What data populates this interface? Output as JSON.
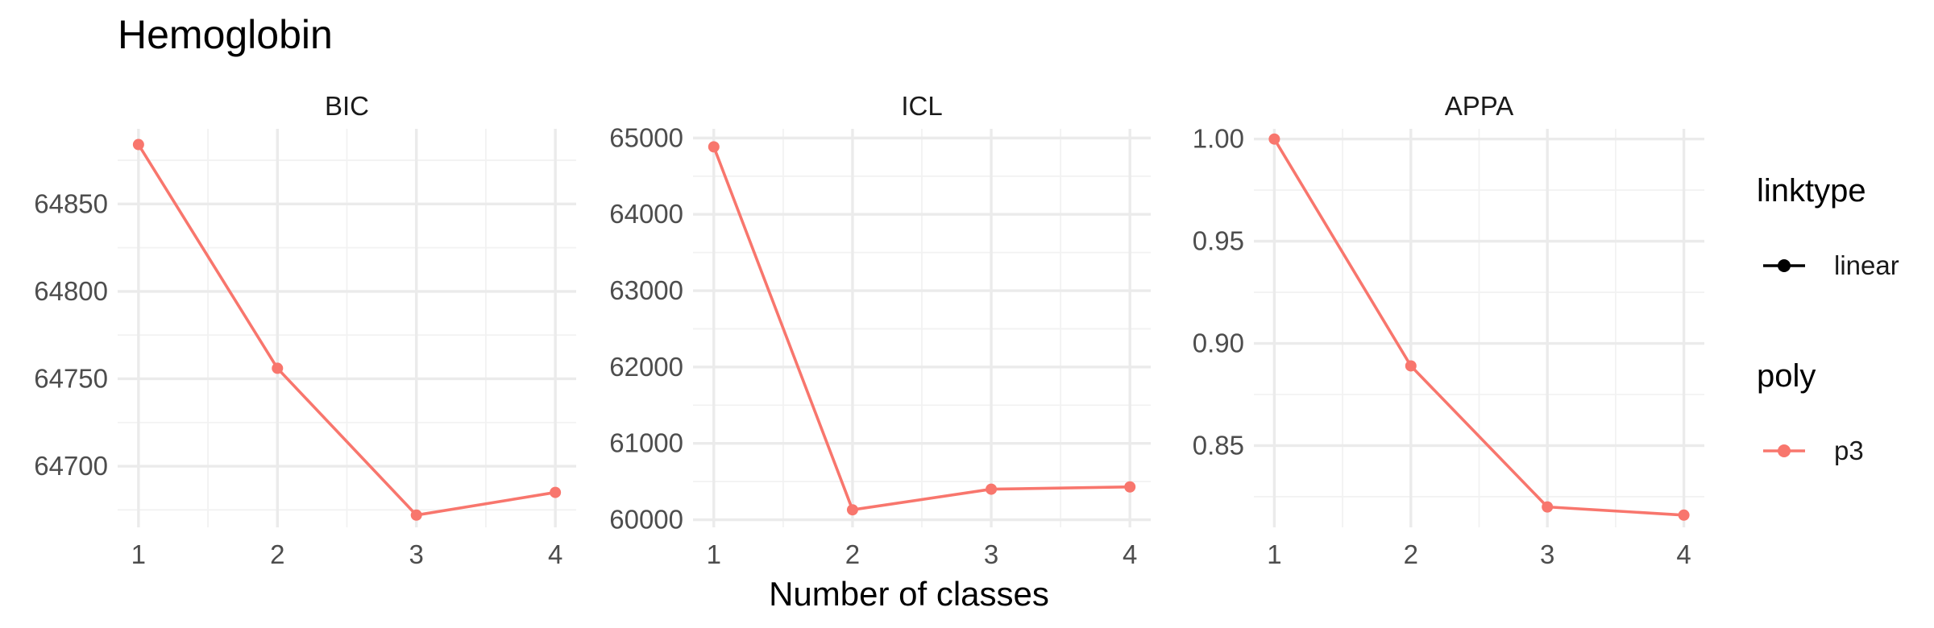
{
  "chart_data": {
    "type": "line",
    "title": "Hemoglobin",
    "xlabel": "Number of classes",
    "x": [
      1,
      2,
      3,
      4
    ],
    "line_color": "#F8766D",
    "panels": [
      {
        "name": "BIC",
        "values": [
          64884,
          64756,
          64672,
          64685
        ],
        "ylim": [
          64665,
          64893
        ],
        "yticks": [
          64700,
          64750,
          64800,
          64850
        ],
        "ytick_labels": [
          "64700",
          "64750",
          "64800",
          "64850"
        ]
      },
      {
        "name": "ICL",
        "values": [
          64884,
          60130,
          60400,
          60430
        ],
        "ylim": [
          59900,
          65120
        ],
        "yticks": [
          60000,
          61000,
          62000,
          63000,
          64000,
          65000
        ],
        "ytick_labels": [
          "60000",
          "61000",
          "62000",
          "63000",
          "64000",
          "65000"
        ]
      },
      {
        "name": "APPA",
        "values": [
          1.0,
          0.889,
          0.82,
          0.816
        ],
        "ylim": [
          0.81,
          1.005
        ],
        "yticks": [
          0.85,
          0.9,
          0.95,
          1.0
        ],
        "ytick_labels": [
          "0.85",
          "0.90",
          "0.95",
          "1.00"
        ]
      }
    ],
    "xtick_labels": [
      "1",
      "2",
      "3",
      "4"
    ],
    "legend": {
      "position": "right",
      "groups": [
        {
          "title": "linktype",
          "items": [
            {
              "label": "linear",
              "color": "#000000"
            }
          ]
        },
        {
          "title": "poly",
          "items": [
            {
              "label": "p3",
              "color": "#F8766D"
            }
          ]
        }
      ]
    },
    "grid": true
  }
}
